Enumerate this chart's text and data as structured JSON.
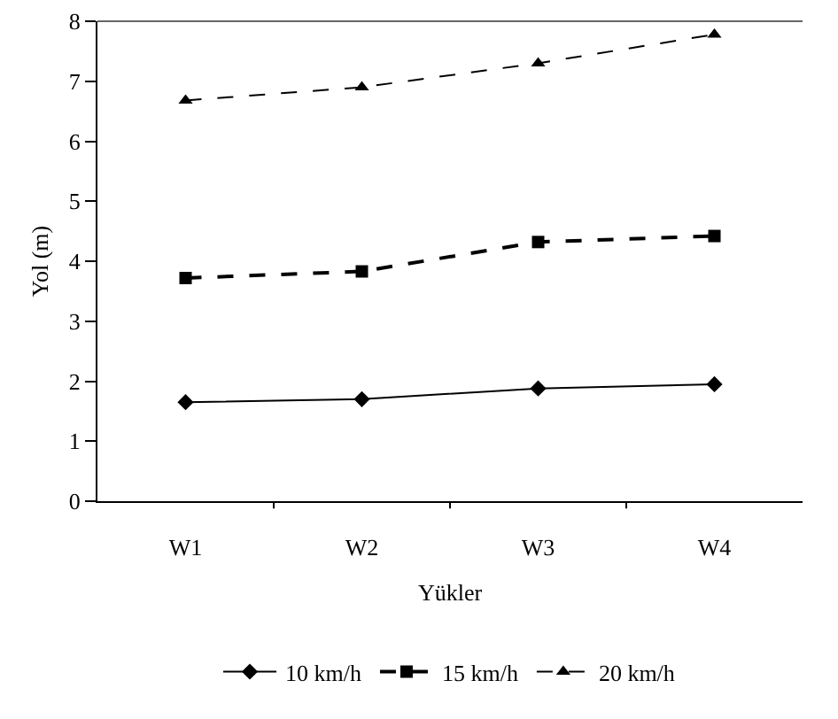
{
  "chart_data": {
    "type": "line",
    "xlabel": "Yükler",
    "ylabel": "Yol (m)",
    "categories": [
      "W1",
      "W2",
      "W3",
      "W4"
    ],
    "series": [
      {
        "name": "10 km/h",
        "color": "#000000",
        "marker": "diamond",
        "line_style": "solid",
        "values": [
          1.65,
          1.7,
          1.88,
          1.95
        ]
      },
      {
        "name": "15 km/h",
        "color": "#000000",
        "marker": "square",
        "line_style": "dashed",
        "values": [
          3.72,
          3.83,
          4.32,
          4.42
        ]
      },
      {
        "name": "20 km/h",
        "color": "#000000",
        "marker": "triangle",
        "line_style": "dashed",
        "values": [
          6.68,
          6.9,
          7.3,
          7.78
        ]
      }
    ],
    "ylim": [
      0,
      8
    ],
    "yticks": [
      0,
      1,
      2,
      3,
      4,
      5,
      6,
      7,
      8
    ],
    "grid": false,
    "legend": "bottom"
  }
}
